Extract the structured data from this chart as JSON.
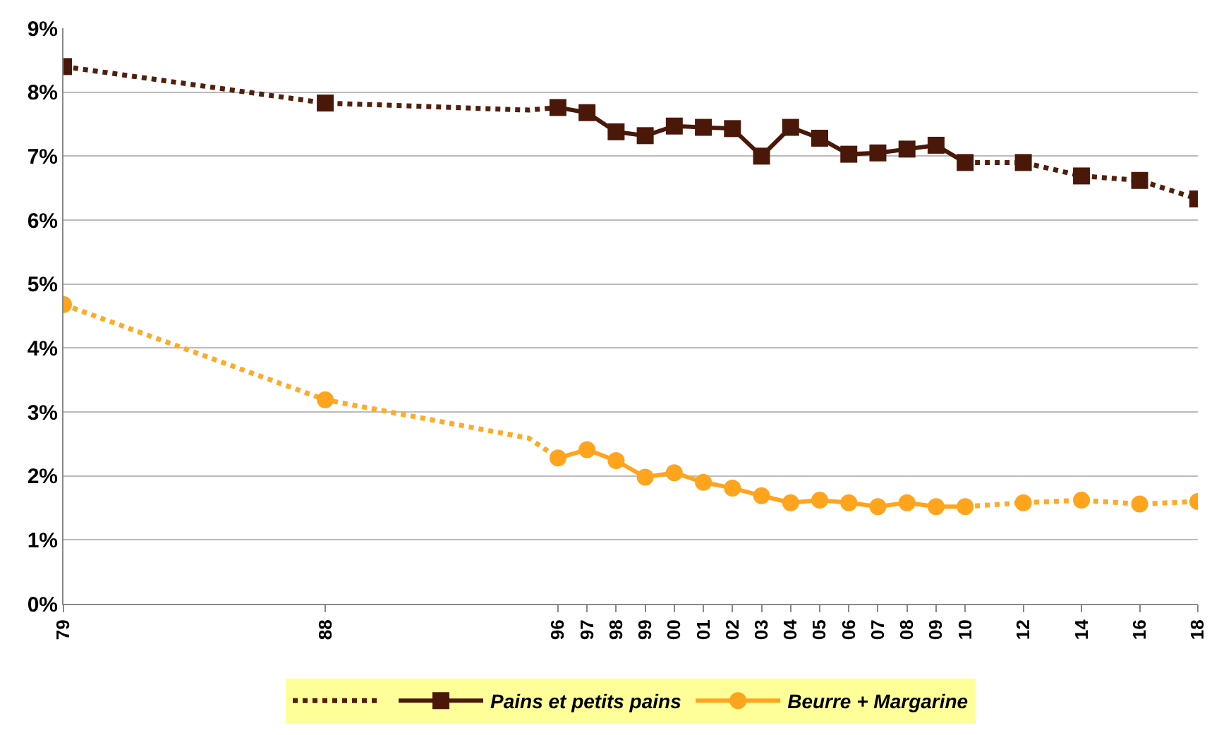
{
  "chart_data": {
    "type": "line",
    "series": [
      {
        "name": "Pains et petits pains",
        "color": "#4a1808",
        "marker": "square",
        "line_style": "solid",
        "x": [
          1979,
          1980,
          1988,
          1995,
          1996,
          1997,
          1998,
          1999,
          2000,
          2001,
          2002,
          2003,
          2004,
          2005,
          2006,
          2007,
          2008,
          2009,
          2010,
          2011,
          2012,
          2013,
          2014,
          2015,
          2016,
          2017,
          2018
        ],
        "values": [
          8.4,
          null,
          7.83,
          null,
          7.76,
          7.68,
          7.38,
          7.32,
          7.47,
          7.45,
          7.43,
          7.0,
          7.45,
          7.28,
          7.03,
          7.05,
          7.11,
          7.17,
          6.9,
          null,
          6.9,
          null,
          6.69,
          null,
          6.62,
          null,
          6.33
        ]
      },
      {
        "name": "Beurre + Margarine",
        "color": "#ffa41c",
        "marker": "circle",
        "line_style": "solid",
        "x": [
          1979,
          1980,
          1988,
          1995,
          1996,
          1997,
          1998,
          1999,
          2000,
          2001,
          2002,
          2003,
          2004,
          2005,
          2006,
          2007,
          2008,
          2009,
          2010,
          2011,
          2012,
          2013,
          2014,
          2015,
          2016,
          2017,
          2018
        ],
        "values": [
          4.68,
          null,
          3.19,
          null,
          2.28,
          2.41,
          2.24,
          1.98,
          2.05,
          1.9,
          1.81,
          1.69,
          1.58,
          1.62,
          1.58,
          1.52,
          1.58,
          1.52,
          1.52,
          null,
          1.58,
          null,
          1.62,
          null,
          1.56,
          null,
          1.6
        ]
      },
      {
        "color": "#50200c",
        "marker": "none",
        "line_style": "dotted",
        "x": [
          1979,
          1988,
          1995,
          1996,
          2003,
          2010,
          2012,
          2014,
          2016,
          2018
        ],
        "values": [
          8.4,
          7.83,
          7.72,
          7.76,
          null,
          6.9,
          6.9,
          6.69,
          6.62,
          6.33
        ]
      },
      {
        "color": "#ffaa28",
        "marker": "none",
        "line_style": "dotted",
        "x": [
          1979,
          1988,
          1995,
          1996,
          2003,
          2010,
          2012,
          2014,
          2016,
          2018
        ],
        "values": [
          4.68,
          3.19,
          2.59,
          2.28,
          null,
          1.52,
          1.58,
          1.62,
          1.56,
          1.6
        ]
      }
    ],
    "xlim": [
      1979,
      2018
    ],
    "xticks": [
      {
        "value": 1979,
        "label": "79"
      },
      {
        "value": 1988,
        "label": "88"
      },
      {
        "value": 1996,
        "label": "96"
      },
      {
        "value": 1997,
        "label": "97"
      },
      {
        "value": 1998,
        "label": "98"
      },
      {
        "value": 1999,
        "label": "99"
      },
      {
        "value": 2000,
        "label": "00"
      },
      {
        "value": 2001,
        "label": "01"
      },
      {
        "value": 2002,
        "label": "02"
      },
      {
        "value": 2003,
        "label": "03"
      },
      {
        "value": 2004,
        "label": "04"
      },
      {
        "value": 2005,
        "label": "05"
      },
      {
        "value": 2006,
        "label": "06"
      },
      {
        "value": 2007,
        "label": "07"
      },
      {
        "value": 2008,
        "label": "08"
      },
      {
        "value": 2009,
        "label": "09"
      },
      {
        "value": 2010,
        "label": "10"
      },
      {
        "value": 2012,
        "label": "12"
      },
      {
        "value": 2014,
        "label": "14"
      },
      {
        "value": 2016,
        "label": "16"
      },
      {
        "value": 2018,
        "label": "18"
      }
    ],
    "ylim": [
      0,
      9
    ],
    "yticks": [
      {
        "value": 0,
        "label": "0%"
      },
      {
        "value": 1,
        "label": "1%"
      },
      {
        "value": 2,
        "label": "2%"
      },
      {
        "value": 3,
        "label": "3%"
      },
      {
        "value": 4,
        "label": "4%"
      },
      {
        "value": 5,
        "label": "5%"
      },
      {
        "value": 6,
        "label": "6%"
      },
      {
        "value": 7,
        "label": "7%"
      },
      {
        "value": 8,
        "label": "8%"
      },
      {
        "value": 9,
        "label": "9%"
      }
    ],
    "grid": "y",
    "legend": "bottom"
  }
}
